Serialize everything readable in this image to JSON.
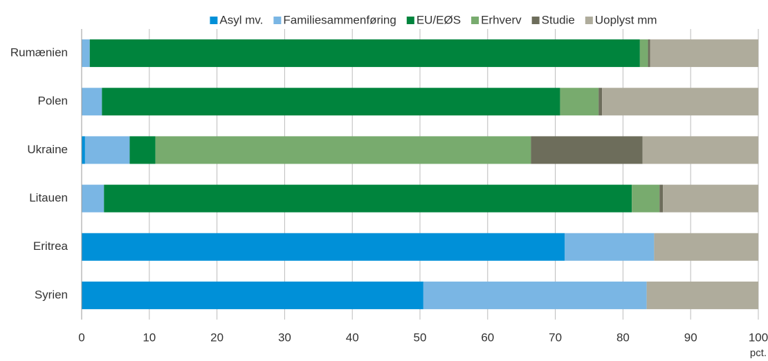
{
  "chart_data": {
    "type": "stacked_barh",
    "categories": [
      "Rumænien",
      "Polen",
      "Ukraine",
      "Litauen",
      "Eritrea",
      "Syrien"
    ],
    "series": [
      {
        "name": "Asyl mv.",
        "color": "#0090d8",
        "values": [
          0,
          0,
          0.5,
          0,
          71.4,
          50.5
        ]
      },
      {
        "name": "Familiesammenføring",
        "color": "#7ab6e4",
        "values": [
          1.2,
          3.0,
          6.6,
          3.3,
          13.2,
          33.0
        ]
      },
      {
        "name": "EU/EØS",
        "color": "#00843d",
        "values": [
          81.3,
          67.7,
          3.8,
          78.0,
          0,
          0
        ]
      },
      {
        "name": "Erhverv",
        "color": "#78ab6e",
        "values": [
          1.2,
          5.7,
          55.5,
          4.1,
          0,
          0
        ]
      },
      {
        "name": "Studie",
        "color": "#6d6d5b",
        "values": [
          0.3,
          0.5,
          16.5,
          0.5,
          0,
          0
        ]
      },
      {
        "name": "Uoplyst mm",
        "color": "#afac9c",
        "values": [
          16.0,
          23.1,
          17.1,
          14.1,
          15.4,
          16.5
        ]
      }
    ],
    "xlabel": "pct.",
    "xlim": [
      0,
      100
    ],
    "xticks": [
      0,
      10,
      20,
      30,
      40,
      50,
      60,
      70,
      80,
      90,
      100
    ],
    "grid": true,
    "legend": "top"
  }
}
